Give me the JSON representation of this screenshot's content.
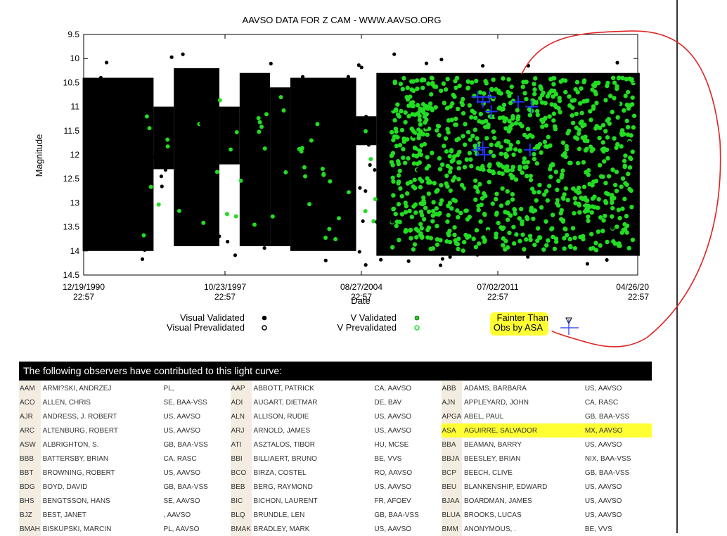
{
  "chart_data": {
    "type": "scatter",
    "title": "AAVSO DATA FOR Z CAM - WWW.AAVSO.ORG",
    "xlabel": "Date",
    "ylabel": "Magnitude",
    "ylim": [
      14.5,
      9.5
    ],
    "y_inverted": true,
    "yticks": [
      "9.5",
      "10",
      "10.5",
      "11",
      "11.5",
      "12",
      "12.5",
      "13",
      "13.5",
      "14",
      "14.5"
    ],
    "xticks": [
      {
        "date": "12/19/1990",
        "time": "22:57"
      },
      {
        "date": "10/23/1997",
        "time": "22:57"
      },
      {
        "date": "08/27/2004",
        "time": "22:57"
      },
      {
        "date": "07/02/2011",
        "time": "22:57"
      },
      {
        "date": "04/26/20",
        "time": "22:57"
      }
    ],
    "grid": false,
    "legend": [
      {
        "label": "Visual Validated",
        "color": "#000000",
        "marker": "filled-dot"
      },
      {
        "label": "Visual Prevalidated",
        "color": "#000000",
        "marker": "hatched-dot"
      },
      {
        "label": "V Validated",
        "color": "#22dd22",
        "marker": "filled-dot"
      },
      {
        "label": "V Prevalidated",
        "color": "#22dd22",
        "marker": "hatched-dot"
      },
      {
        "label": "Fainter Than",
        "color": "#000000",
        "marker": "triangle"
      },
      {
        "label": "Obs by ASA",
        "color": "#2233ee",
        "marker": "cross"
      }
    ],
    "series": [
      {
        "name": "Visual Validated",
        "color": "#000000",
        "note": "dense outbursting light curve between magnitude 10.4 and 14.0, 1990-2018"
      },
      {
        "name": "V Validated",
        "color": "#22dd22",
        "note": "dense from 2006 onward, magnitude 10.3-14.0"
      },
      {
        "name": "Obs by ASA",
        "color": "#2233ee",
        "points": [
          [
            "2010-06",
            10.8
          ],
          [
            "2010-06",
            11.9
          ],
          [
            "2010-09",
            10.9
          ],
          [
            "2010-09",
            11.85
          ],
          [
            "2010-10",
            12.0
          ],
          [
            "2011-01",
            10.8
          ],
          [
            "2011-02",
            11.1
          ],
          [
            "2012-06",
            10.9
          ],
          [
            "2013-02",
            11.0
          ],
          [
            "2013-01",
            11.9
          ]
        ]
      }
    ],
    "dense_band_ranges": [
      {
        "from": "1990-12",
        "to": "1994-06",
        "top": 10.4,
        "bottom": 14.0
      },
      {
        "from": "1994-06",
        "to": "1995-06",
        "top": 11.0,
        "bottom": 12.3
      },
      {
        "from": "1995-06",
        "to": "1997-09",
        "top": 10.2,
        "bottom": 13.9
      },
      {
        "from": "1997-09",
        "to": "1998-09",
        "top": 11.0,
        "bottom": 12.2
      },
      {
        "from": "1998-09",
        "to": "2000-03",
        "top": 10.3,
        "bottom": 13.9
      },
      {
        "from": "2000-03",
        "to": "2001-03",
        "top": 10.6,
        "bottom": 13.9
      },
      {
        "from": "2001-03",
        "to": "2004-06",
        "top": 10.4,
        "bottom": 14.0
      },
      {
        "from": "2004-06",
        "to": "2005-06",
        "top": 11.2,
        "bottom": 11.8
      },
      {
        "from": "2005-06",
        "to": "2018-06",
        "top": 10.3,
        "bottom": 14.1
      }
    ]
  },
  "annotations": {
    "highlight_label_line1": "Fainter Than",
    "highlight_label_line2": "Obs by ASA"
  },
  "observers": {
    "header": "The following observers have contributed to this light curve:",
    "rows": [
      [
        [
          "AAM",
          "ARMI?SKI, ANDRZEJ",
          "PL,"
        ],
        [
          "AAP",
          "ABBOTT, PATRICK",
          "CA, AAVSO"
        ],
        [
          "ABB",
          "ADAMS, BARBARA",
          "US, AAVSO"
        ]
      ],
      [
        [
          "ACO",
          "ALLEN, CHRIS",
          "SE, BAA-VSS"
        ],
        [
          "ADI",
          "AUGART, DIETMAR",
          "DE, BAV"
        ],
        [
          "AJN",
          "APPLEYARD, JOHN",
          "CA, RASC"
        ]
      ],
      [
        [
          "AJR",
          "ANDRESS, J. ROBERT",
          "US, AAVSO"
        ],
        [
          "ALN",
          "ALLISON, RUDIE",
          "US, AAVSO"
        ],
        [
          "APGA",
          "ABEL, PAUL",
          "GB, BAA-VSS"
        ]
      ],
      [
        [
          "ARC",
          "ALTENBURG, ROBERT",
          "US, AAVSO"
        ],
        [
          "ARJ",
          "ARNOLD, JAMES",
          "US, AAVSO"
        ],
        [
          "ASA",
          "AGUIRRE, SALVADOR",
          "MX, AAVSO"
        ]
      ],
      [
        [
          "ASW",
          "ALBRIGHTON, S.",
          "GB, BAA-VSS"
        ],
        [
          "ATI",
          "ASZTALOS, TIBOR",
          "HU, MCSE"
        ],
        [
          "BBA",
          "BEAMAN, BARRY",
          "US, AAVSO"
        ]
      ],
      [
        [
          "BBB",
          "BATTERSBY, BRIAN",
          "CA, RASC"
        ],
        [
          "BBI",
          "BILLIAERT, BRUNO",
          "BE, VVS"
        ],
        [
          "BBJA",
          "BEESLEY, BRIAN",
          "NIX, BAA-VSS"
        ]
      ],
      [
        [
          "BBT",
          "BROWNING, ROBERT",
          "US, AAVSO"
        ],
        [
          "BCO",
          "BIRZA, COSTEL",
          "RO, AAVSO"
        ],
        [
          "BCP",
          "BEECH, CLIVE",
          "GB, BAA-VSS"
        ]
      ],
      [
        [
          "BDG",
          "BOYD, DAVID",
          "GB, BAA-VSS"
        ],
        [
          "BEB",
          "BERG, RAYMOND",
          "US, AAVSO"
        ],
        [
          "BEU",
          "BLANKENSHIP, EDWARD",
          "US, AAVSO"
        ]
      ],
      [
        [
          "BHS",
          "BENGTSSON, HANS",
          "SE, AAVSO"
        ],
        [
          "BIC",
          "BICHON, LAURENT",
          "FR, AFOEV"
        ],
        [
          "BJAA",
          "BOARDMAN, JAMES",
          "US, AAVSO"
        ]
      ],
      [
        [
          "BJZ",
          "BEST, JANET",
          ", AAVSO"
        ],
        [
          "BLQ",
          "BRUNDLE, LEN",
          "GB, BAA-VSS"
        ],
        [
          "BLUA",
          "BROOKS, LUCAS",
          "US, AAVSO"
        ]
      ],
      [
        [
          "BMAH",
          "BISKUPSKI, MARCIN",
          "PL, AAVSO"
        ],
        [
          "BMAK",
          "BRADLEY, MARK",
          "US, AAVSO"
        ],
        [
          "BMM",
          "ANONYMOUS, .",
          "BE, VVS"
        ]
      ]
    ]
  },
  "colors": {
    "visual": "#000000",
    "v_band": "#22dd22",
    "asa": "#2233ee",
    "highlight": "#ffff33",
    "annotation_circle": "#e02020"
  }
}
